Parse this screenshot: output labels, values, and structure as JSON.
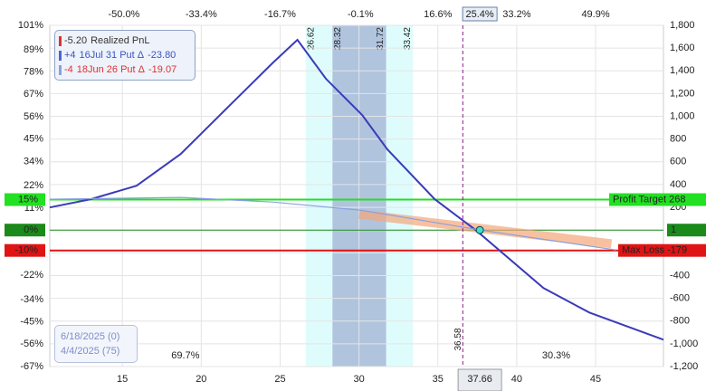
{
  "chart_data": {
    "type": "line",
    "xlim": [
      10.4,
      49.3
    ],
    "xticks": [
      15,
      20,
      25,
      30,
      35,
      40,
      45
    ],
    "x2ticks": [
      {
        "value": 15.1,
        "label": "-50.0%"
      },
      {
        "value": 20,
        "label": "-33.4%"
      },
      {
        "value": 25,
        "label": "-16.7%"
      },
      {
        "value": 30.1,
        "label": "-0.1%"
      },
      {
        "value": 35,
        "label": "16.6%"
      },
      {
        "value": 37.66,
        "label": "25.4%"
      },
      {
        "value": 40,
        "label": "33.2%"
      },
      {
        "value": 45,
        "label": "49.9%"
      }
    ],
    "ylim": [
      -1200,
      1800
    ],
    "yticks": [
      {
        "value": 1800,
        "label": "1,800"
      },
      {
        "value": 1600,
        "label": "1,600"
      },
      {
        "value": 1400,
        "label": "1,400"
      },
      {
        "value": 1200,
        "label": "1,200"
      },
      {
        "value": 1000,
        "label": "1,000"
      },
      800,
      600,
      400,
      200,
      0,
      -200,
      -400,
      -600,
      -800,
      {
        "value": -1000,
        "label": "-1,000"
      },
      {
        "value": -1200,
        "label": "-1,200"
      }
    ],
    "y2lim": [
      -67,
      101
    ],
    "y2ticks": [
      {
        "value": 101,
        "label": "101%"
      },
      {
        "value": 89,
        "label": "89%"
      },
      {
        "value": 78,
        "label": "78%"
      },
      {
        "value": 67,
        "label": "67%"
      },
      {
        "value": 56,
        "label": "56%"
      },
      {
        "value": 45,
        "label": "45%"
      },
      {
        "value": 34,
        "label": "34%"
      },
      {
        "value": 22,
        "label": "22%"
      },
      {
        "value": 11,
        "label": "11%"
      },
      {
        "value": 0,
        "label": "0%"
      },
      {
        "value": -11,
        "label": "-11%"
      },
      {
        "value": -22,
        "label": "-22%"
      },
      {
        "value": -34,
        "label": "-34%"
      },
      {
        "value": -45,
        "label": "-45%"
      },
      {
        "value": -56,
        "label": "-56%"
      },
      {
        "value": -67,
        "label": "-67%"
      }
    ],
    "grid": true,
    "series": [
      {
        "color": "#3b3bb8",
        "x": [
          10.4,
          13.0,
          15.9,
          18.7,
          21.6,
          24.5,
          26.1,
          27.9,
          30.2,
          31.8,
          34.8,
          37.4,
          41.7,
          44.6,
          49.3
        ],
        "values": [
          199,
          271,
          390,
          669,
          1068,
          1466,
          1673,
          1331,
          1012,
          709,
          271,
          0,
          -510,
          -725,
          -964
        ]
      },
      {
        "color": "#8a9fe0",
        "x": [
          10.4,
          18.7,
          24.5,
          30.1,
          37.7,
          46.3
        ],
        "values": [
          271,
          287,
          247,
          175,
          0,
          -175
        ]
      }
    ],
    "bands": [
      {
        "x0": 26.62,
        "x1": 33.42,
        "color": "#dffcfc"
      },
      {
        "x0": 28.32,
        "x1": 31.72,
        "color": "#b0c4de"
      }
    ],
    "hlines": [
      {
        "value": 268,
        "label": "Profit Target 268",
        "pct_label": "15%",
        "color": "#22e022"
      },
      {
        "value": 0,
        "label": "1",
        "pct_label": "0%",
        "color": "#1a8a1a"
      },
      {
        "value": -179,
        "label": "Max Loss -179",
        "pct_label": "-10%",
        "color": "#e01414"
      }
    ],
    "vline": {
      "value": 36.58,
      "color": "#8a1a8a"
    },
    "price": {
      "value": 37.66
    },
    "probabilities": [
      {
        "x": 19.0,
        "label": "69.7%"
      },
      {
        "x": 42.5,
        "label": "30.3%"
      }
    ],
    "legend": [
      {
        "qty": "-5.20",
        "text": "Realized PnL",
        "color": "#e03030",
        "text_color": "#333"
      },
      {
        "qty": "+4",
        "text": "16Jul 31 Put Δ",
        "delta": "-23.80",
        "color": "#4a66cc",
        "text_color": "#3a55c0"
      },
      {
        "qty": "-4",
        "text": "18Jun 26 Put Δ",
        "delta": "-19.07",
        "color": "#8aa0e0",
        "text_color": "#e03030"
      }
    ],
    "dates": [
      "6/18/2025 (0)",
      "4/4/2025 (75)"
    ]
  }
}
